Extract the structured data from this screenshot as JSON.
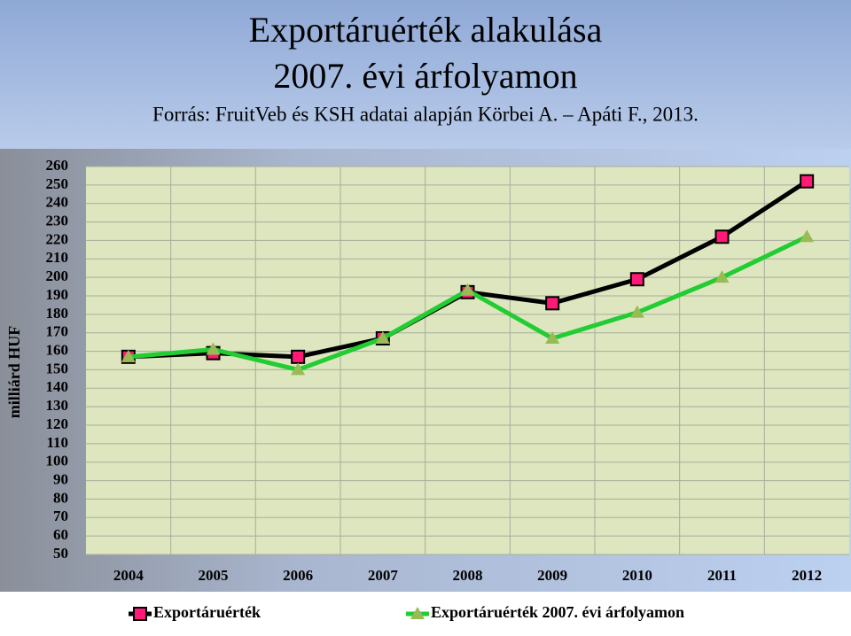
{
  "chart_data": {
    "type": "line",
    "title": "Exportáruérték alakulása",
    "subtitle": "2007. évi árfolyamon",
    "source": "Forrás: FruitVeb és KSH adatai alapján Körbei A. – Apáti F., 2013.",
    "y_label": "milliárd HUF",
    "categories": [
      "2004",
      "2005",
      "2006",
      "2007",
      "2008",
      "2009",
      "2010",
      "2011",
      "2012"
    ],
    "series": [
      {
        "name": "Exportáruérték",
        "color": "#000000",
        "marker": "square",
        "marker_color": "#ff1a75",
        "values": [
          157,
          159,
          157,
          167,
          192,
          186,
          199,
          222,
          252
        ]
      },
      {
        "name": "Exportáruérték 2007. évi árfolyamon",
        "color": "#22cc33",
        "marker": "triangle",
        "marker_color": "#99bb55",
        "values": [
          157,
          161,
          150,
          167,
          193,
          167,
          181,
          200,
          222
        ]
      }
    ],
    "ylim": [
      50,
      260
    ],
    "yticks": [
      50,
      60,
      70,
      80,
      90,
      100,
      110,
      120,
      130,
      140,
      150,
      160,
      170,
      180,
      190,
      200,
      210,
      220,
      230,
      240,
      250,
      260
    ],
    "grid": true,
    "legend": "bottom"
  }
}
